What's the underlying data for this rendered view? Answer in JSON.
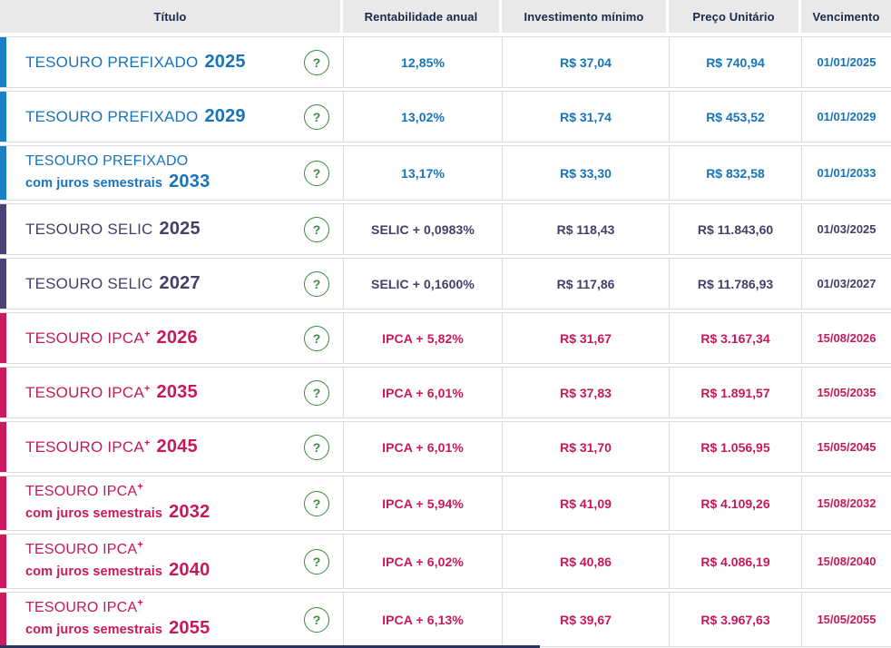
{
  "table": {
    "columns": [
      {
        "label": "Título"
      },
      {
        "label": "Rentabilidade anual"
      },
      {
        "label": "Investimento mínimo"
      },
      {
        "label": "Preço Unitário"
      },
      {
        "label": "Vencimento"
      }
    ],
    "help_icon_glyph": "?",
    "rows": [
      {
        "type": "prefixado",
        "name": "TESOURO PREFIXADO",
        "sup": "",
        "subtitle": "",
        "year": "2025",
        "rate": "12,85%",
        "min_investment": "R$ 37,04",
        "unit_price": "R$ 740,94",
        "maturity": "01/01/2025"
      },
      {
        "type": "prefixado",
        "name": "TESOURO PREFIXADO",
        "sup": "",
        "subtitle": "",
        "year": "2029",
        "rate": "13,02%",
        "min_investment": "R$ 31,74",
        "unit_price": "R$ 453,52",
        "maturity": "01/01/2029"
      },
      {
        "type": "prefixado",
        "name": "TESOURO PREFIXADO",
        "sup": "",
        "subtitle": "com juros semestrais",
        "year": "2033",
        "rate": "13,17%",
        "min_investment": "R$ 33,30",
        "unit_price": "R$ 832,58",
        "maturity": "01/01/2033"
      },
      {
        "type": "selic",
        "name": "TESOURO SELIC",
        "sup": "",
        "subtitle": "",
        "year": "2025",
        "rate": "SELIC + 0,0983%",
        "min_investment": "R$ 118,43",
        "unit_price": "R$ 11.843,60",
        "maturity": "01/03/2025"
      },
      {
        "type": "selic",
        "name": "TESOURO SELIC",
        "sup": "",
        "subtitle": "",
        "year": "2027",
        "rate": "SELIC + 0,1600%",
        "min_investment": "R$ 117,86",
        "unit_price": "R$ 11.786,93",
        "maturity": "01/03/2027"
      },
      {
        "type": "ipca",
        "name": "TESOURO IPCA",
        "sup": "+",
        "subtitle": "",
        "year": "2026",
        "rate": "IPCA + 5,82%",
        "min_investment": "R$ 31,67",
        "unit_price": "R$ 3.167,34",
        "maturity": "15/08/2026"
      },
      {
        "type": "ipca",
        "name": "TESOURO IPCA",
        "sup": "+",
        "subtitle": "",
        "year": "2035",
        "rate": "IPCA + 6,01%",
        "min_investment": "R$ 37,83",
        "unit_price": "R$ 1.891,57",
        "maturity": "15/05/2035"
      },
      {
        "type": "ipca",
        "name": "TESOURO IPCA",
        "sup": "+",
        "subtitle": "",
        "year": "2045",
        "rate": "IPCA + 6,01%",
        "min_investment": "R$ 31,70",
        "unit_price": "R$ 1.056,95",
        "maturity": "15/05/2045"
      },
      {
        "type": "ipca",
        "name": "TESOURO IPCA",
        "sup": "+",
        "subtitle": "com juros semestrais",
        "year": "2032",
        "rate": "IPCA + 5,94%",
        "min_investment": "R$ 41,09",
        "unit_price": "R$ 4.109,26",
        "maturity": "15/08/2032"
      },
      {
        "type": "ipca",
        "name": "TESOURO IPCA",
        "sup": "+",
        "subtitle": "com juros semestrais",
        "year": "2040",
        "rate": "IPCA + 6,02%",
        "min_investment": "R$ 40,86",
        "unit_price": "R$ 4.086,19",
        "maturity": "15/08/2040"
      },
      {
        "type": "ipca",
        "name": "TESOURO IPCA",
        "sup": "+",
        "subtitle": "com juros semestrais",
        "year": "2055",
        "rate": "IPCA + 6,13%",
        "min_investment": "R$ 39,67",
        "unit_price": "R$ 3.967,63",
        "maturity": "15/05/2055"
      }
    ]
  },
  "colors": {
    "prefixado": {
      "text": "#1774b9",
      "bar": "#1a80c3"
    },
    "selic": {
      "text": "#443e69",
      "bar": "#4a4374"
    },
    "ipca": {
      "text": "#c6195c",
      "bar": "#cb1a5f"
    },
    "help_green": "#3c8b41",
    "header_bg": "#e9e9e9",
    "header_text": "#1a2a49",
    "grid_line": "#dcdcdc",
    "footer_strip": "#24365c"
  }
}
